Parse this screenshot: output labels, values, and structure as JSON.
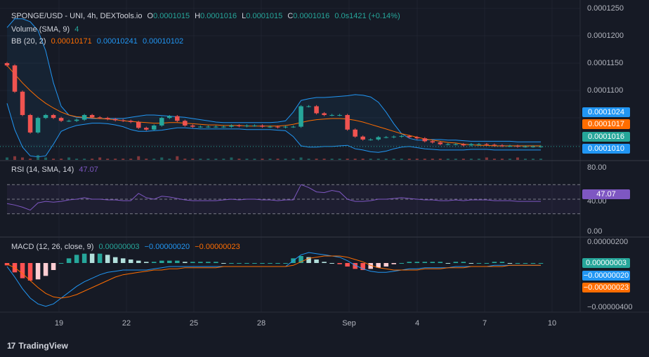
{
  "colors": {
    "background": "#161a25",
    "up": "#26a69a",
    "down": "#ef5350",
    "bb_basis": "#ff6d00",
    "bb_band": "#2196f3",
    "rsi": "#7e57c2",
    "macd_line": "#2196f3",
    "signal_line": "#ff6d00"
  },
  "price_legend": {
    "symbol": "SPONGE/USD - UNI, 4h, DEXTools.io",
    "o_label": "O",
    "o_value": "0.0001015",
    "h_label": "H",
    "h_value": "0.0001016",
    "l_label": "L",
    "l_value": "0.0001015",
    "c_label": "C",
    "c_value": "0.0001016",
    "change": "0.0s1421 (+0.14%)"
  },
  "volume_legend": {
    "label": "Volume (SMA, 9)",
    "value": "4"
  },
  "bb_legend": {
    "label": "BB (20, 2)",
    "basis": "0.00010171",
    "upper": "0.00010241",
    "lower": "0.00010102"
  },
  "rsi_legend": {
    "label": "RSI (14, SMA, 14)",
    "value": "47.07"
  },
  "macd_legend": {
    "label": "MACD (12, 26, close, 9)",
    "hist": "0.00000003",
    "macd": "−0.00000020",
    "signal": "−0.00000023"
  },
  "price_axis": [
    "0.0001250",
    "0.0001200",
    "0.0001150",
    "0.0001100",
    "0.0001050"
  ],
  "price_tags": [
    "0.0001024",
    "0.0001017",
    "0.0001016",
    "0.0001010"
  ],
  "rsi_axis": [
    "80.00",
    "40.00",
    "0.00"
  ],
  "rsi_tag": "47.07",
  "macd_axis": [
    "0.00000200",
    "−0.00000400"
  ],
  "macd_tags": [
    "0.00000003",
    "−0.00000020",
    "−0.00000023"
  ],
  "time_axis": [
    "19",
    "22",
    "25",
    "28",
    "Sep",
    "4",
    "7",
    "10"
  ],
  "brand": {
    "logo": "17",
    "name": "TradingView"
  },
  "chart_data": {
    "type": "line",
    "interval": "4h",
    "price_range": [
      9.93e-05,
      0.000126
    ],
    "rsi_range": [
      0,
      100
    ],
    "macd_range": [
      -4.2e-06,
      2.1e-06
    ],
    "close": [
      0.0001155,
      0.000111,
      0.000107,
      0.000104,
      0.0001065,
      0.000107,
      0.0001065,
      0.000106,
      0.000106,
      0.0001062,
      0.000107,
      0.0001066,
      0.0001065,
      0.0001063,
      0.0001061,
      0.000106,
      0.0001058,
      0.0001048,
      0.0001045,
      0.0001052,
      0.0001065,
      0.0001068,
      0.000106,
      0.0001052,
      0.000105,
      0.000105,
      0.000105,
      0.000105,
      0.000105,
      0.0001052,
      0.0001051,
      0.0001052,
      0.0001052,
      0.000105,
      0.000105,
      0.0001049,
      0.000105,
      0.000105,
      0.0001085,
      0.0001085,
      0.0001073,
      0.000107,
      0.000107,
      0.000107,
      0.0001045,
      0.0001033,
      0.0001028,
      0.0001028,
      0.0001032,
      0.0001032,
      0.0001033,
      0.0001034,
      0.0001032,
      0.000103,
      0.0001025,
      0.0001023,
      0.000102,
      0.000102,
      0.000102,
      0.0001018,
      0.000102,
      0.000102,
      0.0001019,
      0.0001018,
      0.0001017,
      0.0001017,
      0.0001016,
      0.0001016,
      0.0001016,
      0.0001016
    ],
    "bb_basis": [
      0.0001155,
      0.000114,
      0.0001125,
      0.0001112,
      0.00011,
      0.000109,
      0.0001082,
      0.0001075,
      0.000107,
      0.0001067,
      0.0001066,
      0.0001065,
      0.0001064,
      0.0001063,
      0.0001062,
      0.000106,
      0.0001059,
      0.0001058,
      0.0001057,
      0.0001056,
      0.0001056,
      0.0001057,
      0.0001057,
      0.0001056,
      0.0001055,
      0.0001054,
      0.0001053,
      0.0001053,
      0.0001052,
      0.0001052,
      0.0001052,
      0.0001051,
      0.0001051,
      0.0001051,
      0.0001051,
      0.0001051,
      0.0001052,
      0.0001054,
      0.0001057,
      0.000106,
      0.0001062,
      0.0001063,
      0.0001064,
      0.0001064,
      0.0001063,
      0.0001061,
      0.0001058,
      0.0001054,
      0.000105,
      0.0001046,
      0.0001042,
      0.0001038,
      0.0001035,
      0.0001032,
      0.0001029,
      0.0001027,
      0.0001025,
      0.0001023,
      0.0001022,
      0.000102,
      0.0001019,
      0.0001018,
      0.0001018,
      0.0001017,
      0.0001017,
      0.0001017,
      0.0001017,
      0.0001017,
      0.0001017,
      0.0001017
    ],
    "bb_upper": [
      0.000122,
      0.0001235,
      0.0001235,
      0.000123,
      0.0001215,
      0.000118,
      0.0001125,
      0.0001085,
      0.000107,
      0.0001066,
      0.0001065,
      0.0001064,
      0.0001064,
      0.0001064,
      0.0001064,
      0.0001064,
      0.0001066,
      0.0001068,
      0.000107,
      0.000107,
      0.0001069,
      0.0001068,
      0.0001067,
      0.0001066,
      0.0001064,
      0.0001062,
      0.000106,
      0.0001058,
      0.0001057,
      0.0001057,
      0.0001057,
      0.0001057,
      0.0001057,
      0.0001057,
      0.0001057,
      0.0001058,
      0.000106,
      0.0001075,
      0.0001095,
      0.0001098,
      0.00011,
      0.00011,
      0.0001101,
      0.0001102,
      0.0001103,
      0.0001105,
      0.0001104,
      0.0001101,
      0.0001092,
      0.0001075,
      0.0001055,
      0.0001038,
      0.000103,
      0.0001027,
      0.0001027,
      0.0001028,
      0.0001028,
      0.0001027,
      0.0001027,
      0.0001026,
      0.0001025,
      0.0001025,
      0.0001025,
      0.0001025,
      0.0001025,
      0.0001025,
      0.0001024,
      0.0001024,
      0.0001024,
      0.0001024
    ],
    "bb_lower": [
      0.000109,
      0.0001045,
      0.0001015,
      0.0001,
      9.98e-05,
      0.0001,
      0.000102,
      0.0001042,
      0.0001048,
      0.0001052,
      0.0001054,
      0.0001056,
      0.0001056,
      0.0001055,
      0.0001053,
      0.000105,
      0.0001045,
      0.0001042,
      0.0001042,
      0.0001043,
      0.0001044,
      0.0001046,
      0.0001048,
      0.0001048,
      0.0001047,
      0.0001046,
      0.0001046,
      0.0001046,
      0.0001046,
      0.0001046,
      0.0001046,
      0.0001045,
      0.0001045,
      0.0001045,
      0.0001045,
      0.0001044,
      0.0001043,
      0.0001033,
      0.0001017,
      0.0001015,
      0.0001015,
      0.0001016,
      0.0001016,
      0.0001017,
      0.0001018,
      0.0001012,
      0.000101,
      0.0001007,
      0.0001006,
      0.0001008,
      0.0001012,
      0.0001015,
      0.0001016,
      0.0001014,
      0.0001012,
      0.0001011,
      0.000101,
      0.000101,
      0.000101,
      0.000101,
      0.0001011,
      0.0001011,
      0.0001011,
      0.000101,
      0.000101,
      0.000101,
      0.000101,
      0.000101,
      0.000101,
      0.000101
    ],
    "volume": [
      2,
      3,
      2,
      1,
      4,
      2,
      1,
      1,
      2,
      1,
      1,
      1,
      2,
      1,
      1,
      1,
      1,
      3,
      1,
      1,
      2,
      1,
      3,
      1,
      1,
      1,
      1,
      1,
      1,
      2,
      1,
      1,
      1,
      1,
      1,
      1,
      1,
      1,
      2,
      1,
      1,
      1,
      1,
      1,
      1,
      1,
      1,
      1,
      1,
      1,
      1,
      1,
      1,
      1,
      1,
      1,
      1,
      1,
      1,
      1,
      1,
      1,
      2,
      1,
      1,
      1,
      2,
      1,
      1,
      1
    ],
    "rsi": [
      44,
      42,
      39,
      35,
      45,
      47,
      46,
      47,
      49,
      50,
      52,
      50,
      50,
      49,
      49,
      48,
      48,
      58,
      52,
      50,
      54,
      53,
      51,
      49,
      48,
      48,
      48,
      48,
      49,
      50,
      49,
      50,
      50,
      49,
      49,
      48,
      49,
      49,
      70,
      66,
      60,
      59,
      62,
      60,
      50,
      47,
      47,
      48,
      50,
      50,
      51,
      52,
      51,
      50,
      49,
      49,
      48,
      48,
      49,
      48,
      49,
      49,
      49,
      48,
      48,
      48,
      47,
      47,
      47,
      47
    ],
    "macd_line": [
      -3e-07,
      -1.2e-06,
      -2.2e-06,
      -3e-06,
      -3.5e-06,
      -3.7e-06,
      -3.5e-06,
      -3e-06,
      -2.5e-06,
      -2e-06,
      -1.6e-06,
      -1.3e-06,
      -1e-06,
      -8e-07,
      -7e-07,
      -6e-07,
      -6e-07,
      -6e-07,
      -6e-07,
      -5e-07,
      -4e-07,
      -3e-07,
      -3e-07,
      -3e-07,
      -3e-07,
      -3e-07,
      -3e-07,
      -3e-07,
      -3e-07,
      -3e-07,
      -3e-07,
      -3e-07,
      -3e-07,
      -3e-07,
      -3e-07,
      -3e-07,
      -3e-07,
      2e-07,
      7e-07,
      9e-07,
      8e-07,
      7e-07,
      6e-07,
      5e-07,
      2e-07,
      -2e-07,
      -5e-07,
      -7e-07,
      -8e-07,
      -8e-07,
      -7e-07,
      -6e-07,
      -5e-07,
      -5e-07,
      -4e-07,
      -4e-07,
      -4e-07,
      -4e-07,
      -3e-07,
      -3e-07,
      -3e-07,
      -3e-07,
      -3e-07,
      -2e-07,
      -2e-07,
      -2e-07,
      -2e-07,
      -2e-07,
      -2e-07,
      -2e-07
    ],
    "signal_line": [
      -1e-07,
      -4e-07,
      -9e-07,
      -1.5e-06,
      -2.1e-06,
      -2.6e-06,
      -2.9e-06,
      -3e-06,
      -2.9e-06,
      -2.7e-06,
      -2.4e-06,
      -2.1e-06,
      -1.8e-06,
      -1.5e-06,
      -1.2e-06,
      -1e-06,
      -9e-07,
      -8e-07,
      -7e-07,
      -6e-07,
      -6e-07,
      -5e-07,
      -5e-07,
      -4e-07,
      -4e-07,
      -4e-07,
      -4e-07,
      -4e-07,
      -3e-07,
      -3e-07,
      -3e-07,
      -3e-07,
      -3e-07,
      -3e-07,
      -3e-07,
      -3e-07,
      -3e-07,
      -2e-07,
      1e-07,
      4e-07,
      5e-07,
      6e-07,
      6e-07,
      6e-07,
      5e-07,
      3e-07,
      1e-07,
      -2e-07,
      -4e-07,
      -5e-07,
      -6e-07,
      -6e-07,
      -6e-07,
      -6e-07,
      -5e-07,
      -5e-07,
      -5e-07,
      -4e-07,
      -4e-07,
      -4e-07,
      -3e-07,
      -3e-07,
      -3e-07,
      -3e-07,
      -3e-07,
      -2e-07,
      -2e-07,
      -2e-07,
      -2e-07,
      -2e-07
    ]
  }
}
